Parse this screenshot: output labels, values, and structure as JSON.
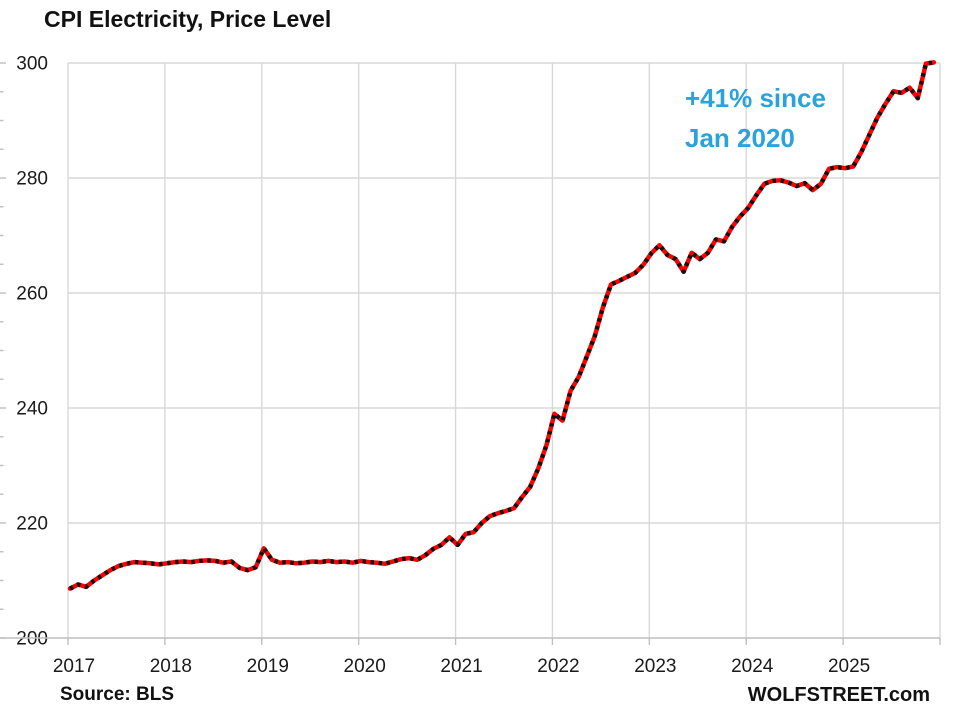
{
  "title": "CPI Electricity, Price Level",
  "annotation": {
    "line1": "+41% since",
    "line2": "Jan 2020",
    "color": "#29A3DC"
  },
  "footer": {
    "source": "Source: BLS",
    "brand": "WOLFSTREET.com"
  },
  "chart_data": {
    "type": "line",
    "title": "CPI Electricity, Price Level",
    "frequency": "monthly",
    "x_start": "2017-01",
    "x_end": "2025-12",
    "year_ticks": [
      2017,
      2018,
      2019,
      2020,
      2021,
      2022,
      2023,
      2024,
      2025
    ],
    "ylim": [
      200,
      300
    ],
    "yticks": [
      200,
      220,
      240,
      260,
      280,
      300
    ],
    "y_minor_step": 5,
    "grid": true,
    "gridline_color": "#D8D8D8",
    "axis_color": "#BFBFBF",
    "line_color": "#FE0000",
    "marker_color": "#111111",
    "annotation_text": "+41% since Jan 2020",
    "series": [
      {
        "name": "CPI Electricity, price level index",
        "values": [
          208.6,
          209.3,
          208.9,
          210.0,
          210.9,
          211.8,
          212.5,
          212.9,
          213.2,
          213.1,
          213.0,
          212.8,
          213.0,
          213.2,
          213.3,
          213.2,
          213.4,
          213.5,
          213.4,
          213.1,
          213.3,
          212.2,
          211.8,
          212.3,
          215.6,
          213.6,
          213.1,
          213.2,
          213.0,
          213.1,
          213.3,
          213.2,
          213.4,
          213.2,
          213.3,
          213.1,
          213.4,
          213.2,
          213.1,
          212.9,
          213.3,
          213.7,
          213.9,
          213.6,
          214.4,
          215.5,
          216.2,
          217.5,
          216.2,
          218.1,
          218.4,
          220.0,
          221.2,
          221.7,
          222.1,
          222.6,
          224.5,
          226.3,
          229.5,
          233.5,
          239.0,
          237.8,
          243.0,
          245.4,
          248.9,
          252.5,
          257.5,
          261.5,
          262.1,
          262.8,
          263.5,
          264.9,
          266.9,
          268.3,
          266.6,
          265.9,
          263.7,
          267.0,
          265.9,
          267.0,
          269.3,
          269.0,
          271.5,
          273.3,
          274.8,
          277.0,
          279.0,
          279.5,
          279.6,
          279.2,
          278.6,
          279.1,
          277.9,
          279.0,
          281.6,
          281.9,
          281.7,
          282.0,
          284.5,
          287.5,
          290.5,
          292.9,
          295.1,
          294.8,
          295.7,
          293.9,
          299.9,
          300.1
        ]
      }
    ]
  }
}
